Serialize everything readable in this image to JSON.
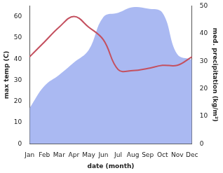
{
  "chart_data": {
    "type": "line",
    "categories": [
      "Jan",
      "Feb",
      "Mar",
      "Apr",
      "May",
      "Jun",
      "Jul",
      "Aug",
      "Sep",
      "Oct",
      "Nov",
      "Dec"
    ],
    "x_label": "date (month)",
    "y_label": "max temp (C)",
    "y2_label": "med. precipitation (kg/m²)",
    "ylim": [
      0,
      65
    ],
    "yticks": [
      0,
      10,
      20,
      30,
      40,
      50,
      60
    ],
    "y2lim": [
      0,
      50
    ],
    "y2ticks": [
      0,
      10,
      20,
      30,
      40,
      50
    ],
    "grid": false,
    "series": [
      {
        "name": "med. precipitation",
        "type": "area",
        "axis": "y2",
        "color": "#aab9f2",
        "values": [
          13,
          21,
          25,
          29.5,
          34,
          46,
          47.5,
          49.5,
          49,
          47.5,
          32.5,
          30.5
        ]
      },
      {
        "name": "max temp",
        "type": "line",
        "axis": "y",
        "color": "#c4505f",
        "values": [
          41,
          48,
          55,
          60,
          55,
          49,
          35,
          34.5,
          35.5,
          37,
          37,
          41
        ]
      }
    ]
  }
}
